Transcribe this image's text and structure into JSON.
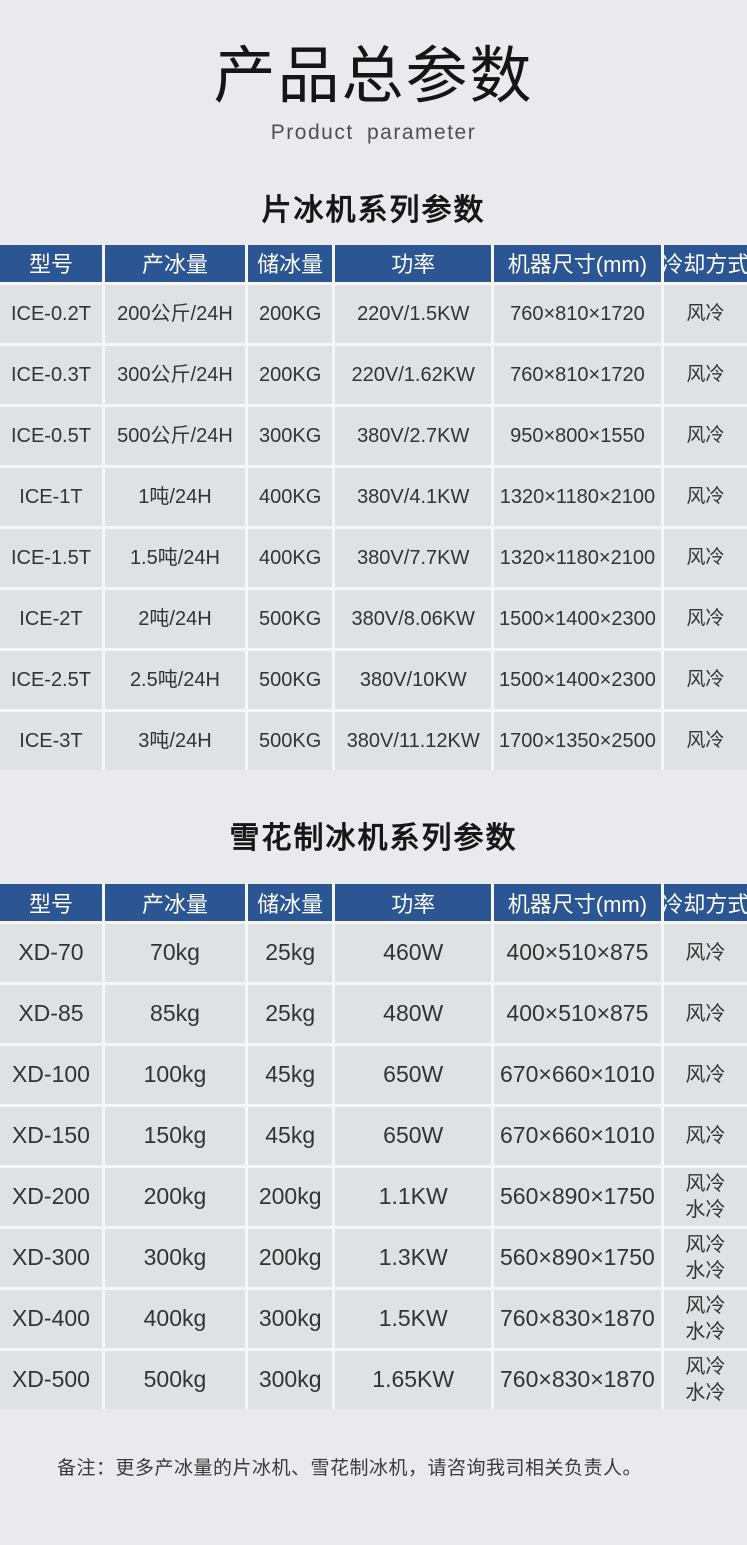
{
  "page": {
    "title": "产品总参数",
    "subtitle": "Product parameter",
    "note": "备注：更多产冰量的片冰机、雪花制冰机，请咨询我司相关负责人。"
  },
  "colors": {
    "header_bg": "#2b5693",
    "header_text": "#ffffff",
    "cell_bg": "#e0e1e2",
    "page_bg": "#eaeaec",
    "body_text": "#333333"
  },
  "tables": [
    {
      "heading": "片冰机系列参数",
      "columns": [
        "型号",
        "产冰量",
        "储冰量",
        "功率",
        "机器尺寸(mm)",
        "冷却方式"
      ],
      "col_fr": [
        104,
        143,
        86,
        159,
        170,
        85
      ],
      "col_keys": [
        "model",
        "production",
        "storage",
        "power",
        "dimensions",
        "cooling"
      ],
      "rows": [
        [
          "ICE-0.2T",
          "200公斤/24H",
          "200KG",
          "220V/1.5KW",
          "760×810×1720",
          "风冷"
        ],
        [
          "ICE-0.3T",
          "300公斤/24H",
          "200KG",
          "220V/1.62KW",
          "760×810×1720",
          "风冷"
        ],
        [
          "ICE-0.5T",
          "500公斤/24H",
          "300KG",
          "380V/2.7KW",
          "950×800×1550",
          "风冷"
        ],
        [
          "ICE-1T",
          "1吨/24H",
          "400KG",
          "380V/4.1KW",
          "1320×1180×2100",
          "风冷"
        ],
        [
          "ICE-1.5T",
          "1.5吨/24H",
          "400KG",
          "380V/7.7KW",
          "1320×1180×2100",
          "风冷"
        ],
        [
          "ICE-2T",
          "2吨/24H",
          "500KG",
          "380V/8.06KW",
          "1500×1400×2300",
          "风冷"
        ],
        [
          "ICE-2.5T",
          "2.5吨/24H",
          "500KG",
          "380V/10KW",
          "1500×1400×2300",
          "风冷"
        ],
        [
          "ICE-3T",
          "3吨/24H",
          "500KG",
          "380V/11.12KW",
          "1700×1350×2500",
          "风冷"
        ]
      ]
    },
    {
      "heading": "雪花制冰机系列参数",
      "columns": [
        "型号",
        "产冰量",
        "储冰量",
        "功率",
        "机器尺寸(mm)",
        "冷却方式"
      ],
      "col_fr": [
        104,
        143,
        86,
        159,
        170,
        85
      ],
      "col_keys": [
        "model",
        "production",
        "storage",
        "power",
        "dimensions",
        "cooling"
      ],
      "rows": [
        [
          "XD-70",
          "70kg",
          "25kg",
          "460W",
          "400×510×875",
          "风冷"
        ],
        [
          "XD-85",
          "85kg",
          "25kg",
          "480W",
          "400×510×875",
          "风冷"
        ],
        [
          "XD-100",
          "100kg",
          "45kg",
          "650W",
          "670×660×1010",
          "风冷"
        ],
        [
          "XD-150",
          "150kg",
          "45kg",
          "650W",
          "670×660×1010",
          "风冷"
        ],
        [
          "XD-200",
          "200kg",
          "200kg",
          "1.1KW",
          "560×890×1750",
          "风冷\n水冷"
        ],
        [
          "XD-300",
          "300kg",
          "200kg",
          "1.3KW",
          "560×890×1750",
          "风冷\n水冷"
        ],
        [
          "XD-400",
          "400kg",
          "300kg",
          "1.5KW",
          "760×830×1870",
          "风冷\n水冷"
        ],
        [
          "XD-500",
          "500kg",
          "300kg",
          "1.65KW",
          "760×830×1870",
          "风冷\n水冷"
        ]
      ]
    }
  ]
}
